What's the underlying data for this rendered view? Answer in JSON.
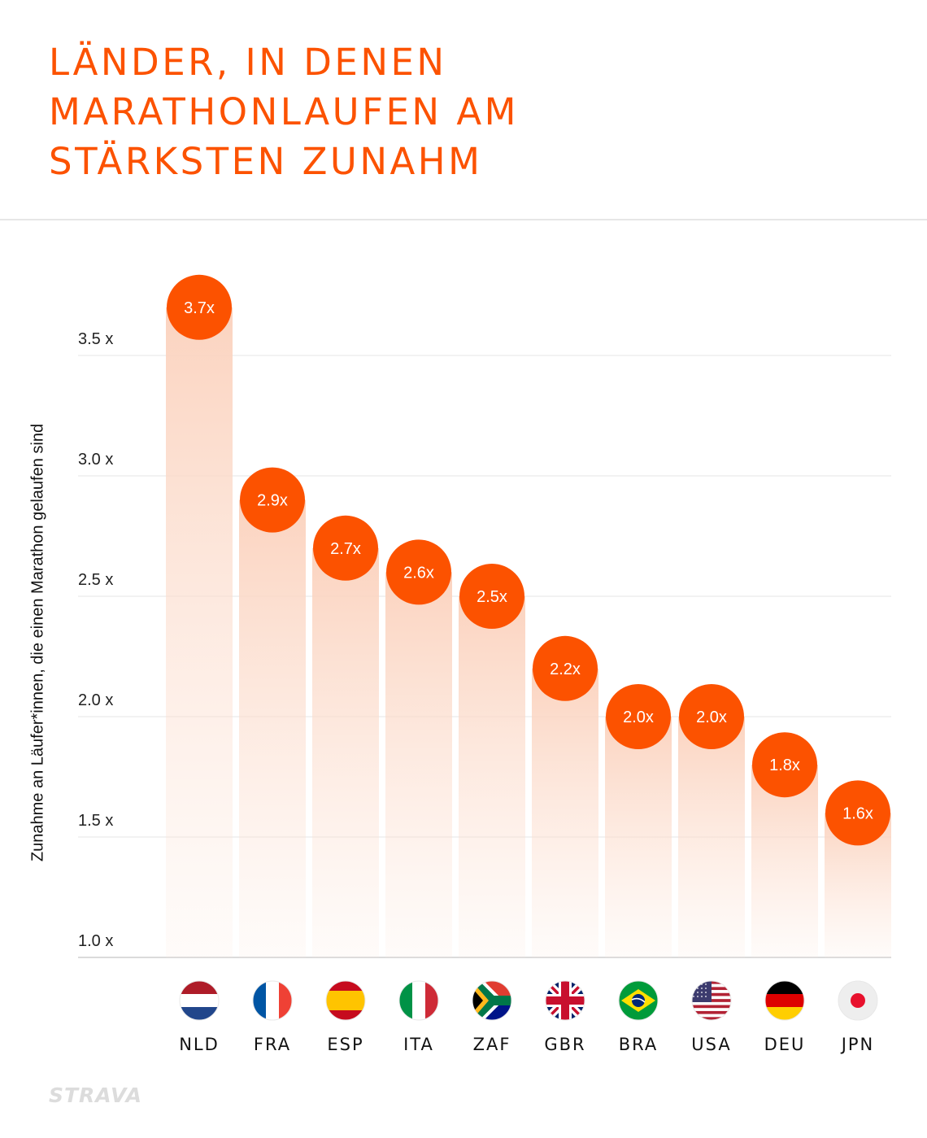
{
  "title": "LÄNDER, IN DENEN MARATHONLAUFEN AM STÄRKSTEN ZUNAHM",
  "brand": "STRAVA",
  "colors": {
    "accent": "#fc5200",
    "bar_fade": "#fbd5c2",
    "grid": "#e4e4e4"
  },
  "chart_data": {
    "type": "bar",
    "ylabel": "Zunahme an Läufer*innen, die einen Marathon gelaufen sind",
    "xlabel": "",
    "ylim": [
      1.0,
      3.7
    ],
    "yticks": [
      1.0,
      1.5,
      2.0,
      2.5,
      3.0,
      3.5
    ],
    "ytick_labels": [
      "1.0 x",
      "1.5 x",
      "2.0 x",
      "2.5 x",
      "3.0 x",
      "3.5 x"
    ],
    "categories": [
      "NLD",
      "FRA",
      "ESP",
      "ITA",
      "ZAF",
      "GBR",
      "BRA",
      "USA",
      "DEU",
      "JPN"
    ],
    "values": [
      3.7,
      2.9,
      2.7,
      2.6,
      2.5,
      2.2,
      2.0,
      2.0,
      1.8,
      1.6
    ],
    "value_labels": [
      "3.7x",
      "2.9x",
      "2.7x",
      "2.6x",
      "2.5x",
      "2.2x",
      "2.0x",
      "2.0x",
      "1.8x",
      "1.6x"
    ],
    "flag_icons": [
      "flag-nld-icon",
      "flag-fra-icon",
      "flag-esp-icon",
      "flag-ita-icon",
      "flag-zaf-icon",
      "flag-gbr-icon",
      "flag-bra-icon",
      "flag-usa-icon",
      "flag-deu-icon",
      "flag-jpn-icon"
    ],
    "grid": true,
    "legend": "none"
  }
}
